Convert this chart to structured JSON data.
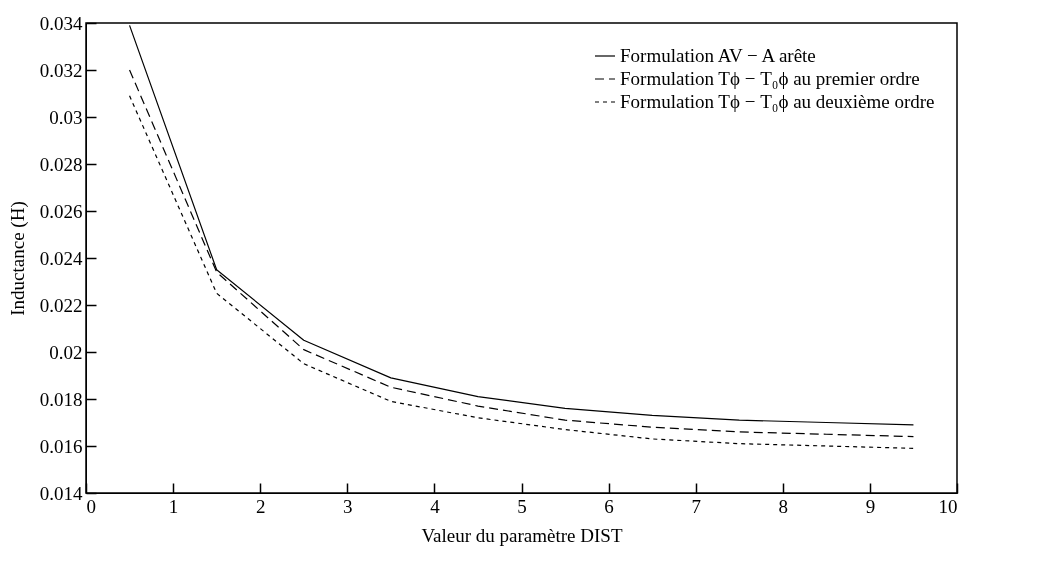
{
  "chart_data": {
    "type": "line",
    "xlabel": "Valeur du paramètre DIST",
    "ylabel": "Inductance (H)",
    "x": [
      0.5,
      1.5,
      2.5,
      3.5,
      4.5,
      5.5,
      6.5,
      7.5,
      8.5,
      9.5
    ],
    "series": [
      {
        "name": "Formulation AV − A arête",
        "color": "#000000",
        "line_style": "solid",
        "values": [
          0.0339,
          0.0235,
          0.0205,
          0.0189,
          0.0181,
          0.0176,
          0.0173,
          0.0171,
          0.017,
          0.0169
        ]
      },
      {
        "name": "Formulation Tϕ − T₀ϕ au premier ordre",
        "color": "#000000",
        "line_style": "dashed",
        "values": [
          0.032,
          0.0234,
          0.0201,
          0.0185,
          0.0177,
          0.0171,
          0.0168,
          0.0166,
          0.0165,
          0.0164
        ]
      },
      {
        "name": "Formulation Tϕ − T₀ϕ au deuxième ordre",
        "color": "#000000",
        "line_style": "dotted",
        "values": [
          0.0309,
          0.0225,
          0.0195,
          0.0179,
          0.0172,
          0.0167,
          0.0163,
          0.0161,
          0.016,
          0.0159
        ]
      }
    ],
    "xlim": [
      0,
      10
    ],
    "xticks": [
      0,
      1,
      2,
      3,
      4,
      5,
      6,
      7,
      8,
      9,
      10
    ],
    "ylim": [
      0.014,
      0.034
    ],
    "yticks": [
      0.014,
      0.016,
      0.018,
      0.02,
      0.022,
      0.024,
      0.026,
      0.028,
      0.03,
      0.032,
      0.034
    ],
    "grid": false,
    "legend": "top right",
    "marker": "none"
  }
}
